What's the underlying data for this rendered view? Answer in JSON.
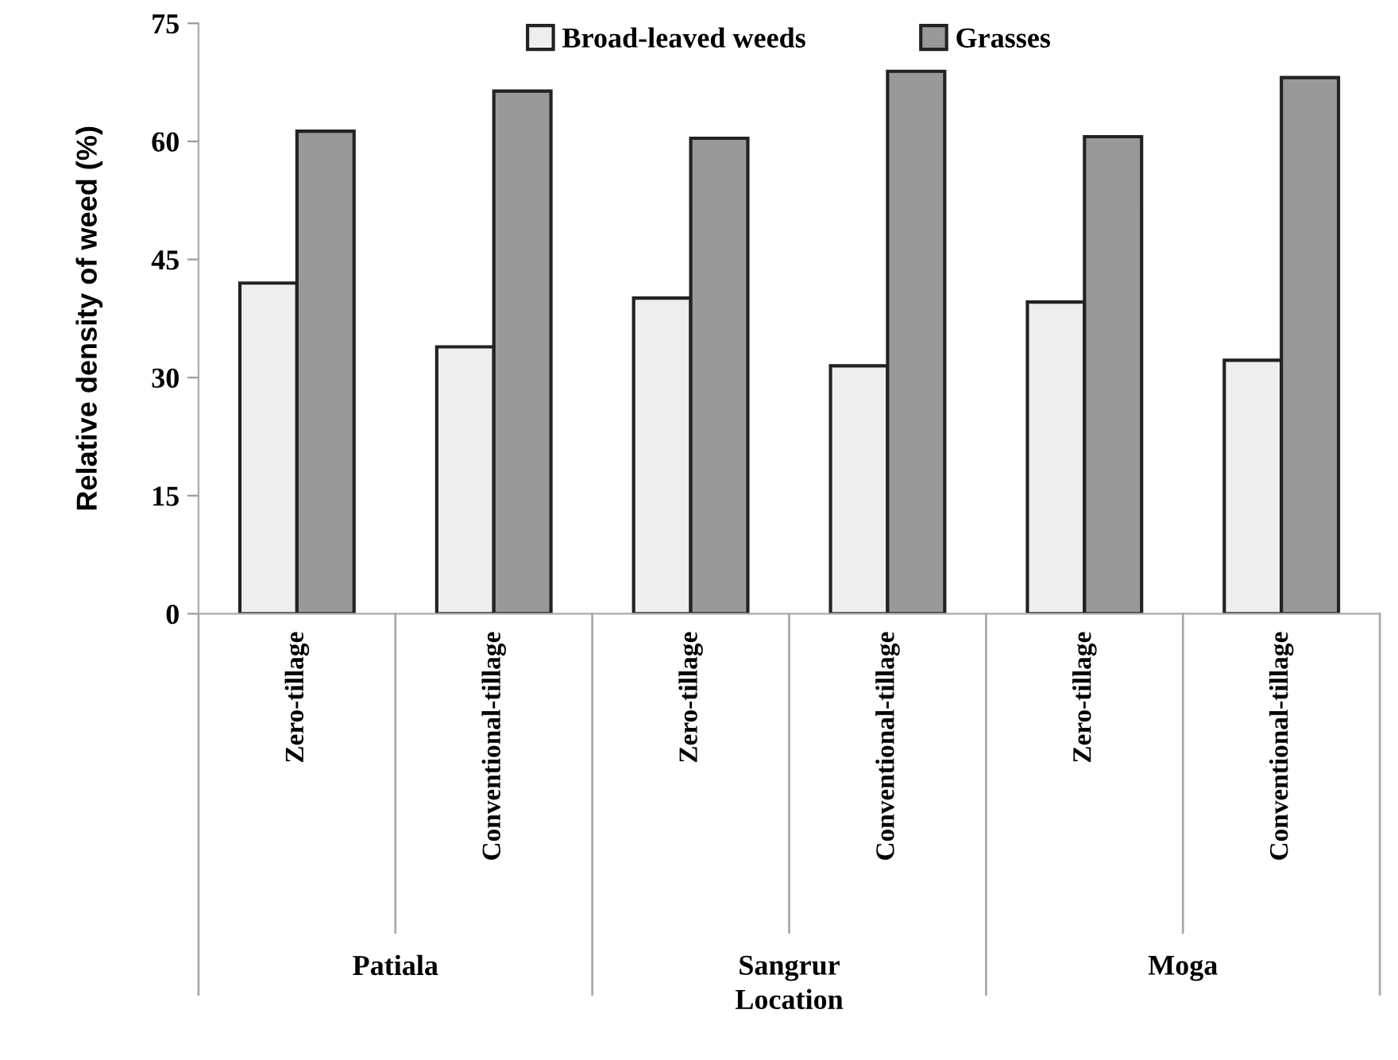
{
  "chart_data": {
    "type": "bar",
    "ylabel": "Relative density of weed (%)",
    "xlabel": "Location",
    "categories": [
      "Zero-tillage",
      "Conventional-tillage",
      "Zero-tillage",
      "Conventional-tillage",
      "Zero-tillage",
      "Conventional-tillage"
    ],
    "series": [
      {
        "name": "Broad-leaved weeds",
        "color": "#eeeeee",
        "values": [
          42.0,
          33.9,
          40.1,
          31.5,
          39.6,
          32.2
        ]
      },
      {
        "name": "Grasses",
        "color": "#999999",
        "values": [
          61.3,
          66.4,
          60.4,
          68.9,
          60.6,
          68.1
        ]
      }
    ],
    "annotations": [
      "Patiala",
      "Sangrur",
      "Moga"
    ],
    "ylim": [
      0,
      75
    ],
    "yticks": [
      0,
      15,
      30,
      45,
      60,
      75
    ],
    "legend": "top",
    "grid": false
  }
}
